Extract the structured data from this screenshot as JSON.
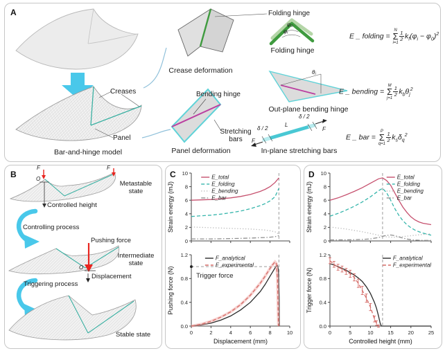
{
  "panels": {
    "a": "A",
    "b": "B",
    "c": "C",
    "d": "D"
  },
  "panel_a": {
    "labels": {
      "creases": "Creases",
      "panel": "Panel",
      "model_caption": "Bar-and-hinge model",
      "crease_deformation": "Crease deformation",
      "folding_hinge_callout": "Folding hinge",
      "folding_hinge_caption": "Folding hinge",
      "phi0": "φ₀",
      "phii": "φᵢ",
      "bending_hinge": "Bending hinge",
      "stretching_bars": "Stretching bars",
      "panel_deformation": "Panel deformation",
      "outplane_caption": "Out-plane bending hinge",
      "theta": "θⱼ",
      "inplane_caption": "In-plane stretching bars",
      "delta_left": "δ / 2",
      "delta_right": "δ / 2",
      "bar_length": "L",
      "force_left": "F",
      "force_right": "F"
    },
    "equations": {
      "folding": {
        "lhs": "E _ folding  = ",
        "sum_top": "N",
        "sum_bot": "i=1",
        "num": "1",
        "den": "2",
        "tokens": [
          [
            "k",
            ""
          ],
          [
            "f",
            "sub"
          ],
          [
            "(",
            ""
          ],
          [
            "φ",
            ""
          ],
          [
            "i",
            "sub"
          ],
          [
            " − ",
            ""
          ],
          [
            "φ",
            ""
          ],
          [
            "0",
            "sub"
          ],
          [
            ")",
            ""
          ],
          [
            "2",
            "sup"
          ]
        ]
      },
      "bending": {
        "lhs": "E _ bending  = ",
        "sum_top": "M",
        "sum_bot": "j=1",
        "num": "1",
        "den": "2",
        "tokens": [
          [
            "k",
            ""
          ],
          [
            "b",
            "sub"
          ],
          [
            "θ",
            ""
          ],
          [
            "j",
            "sub"
          ],
          [
            "2",
            "sup"
          ]
        ]
      },
      "bar": {
        "lhs": "E _ bar  = ",
        "sum_top": "P",
        "sum_bot": "q=1",
        "num": "1",
        "den": "2",
        "tokens": [
          [
            "k",
            ""
          ],
          [
            "s",
            "sub"
          ],
          [
            "δ",
            ""
          ],
          [
            "q",
            "sub"
          ],
          [
            "2",
            "sup"
          ]
        ]
      }
    }
  },
  "panel_b": {
    "labels": {
      "f1": "F",
      "f2": "F",
      "o1": "O",
      "o2": "O",
      "controlled_height": "Controlled height",
      "metastable": "Metastable state",
      "controlling": "Controlling process",
      "pushing": "Pushing force",
      "intermediate": "Intermediate state",
      "displacement": "Displacement",
      "triggering": "Triggering process",
      "stable": "Stable state"
    }
  },
  "colors": {
    "e_total": "#c6506e",
    "e_folding": "#35b5ab",
    "e_bending": "#b9b9b9",
    "e_bar": "#8f8f8f",
    "analytical": "#2b2b2b",
    "experimental": "#d56a66",
    "halo": "#f0a8a4",
    "guide": "#9c9c9c",
    "cyan_arrow": "#49c8ea",
    "red_arrow": "#e8251f",
    "green_hinge": "#3f9b3f",
    "light_green": "#b5d6a8",
    "magenta_hinge": "#bb3fa0",
    "cyan_edge": "#5fd3d8"
  },
  "chart_data": {
    "c_top": {
      "type": "line",
      "xlim": [
        0,
        10
      ],
      "ylim": [
        0,
        10
      ],
      "ylabel": "Strain energy (mJ)",
      "xticks": [
        0,
        2,
        4,
        6,
        8,
        10
      ],
      "yticks": [
        0,
        2,
        4,
        6,
        8,
        10
      ],
      "ytick_labels": [
        "0",
        "2",
        "4",
        "6",
        "8",
        "10"
      ],
      "vlines": [
        {
          "x": 8.9,
          "color": "#9c9c9c"
        }
      ],
      "legend": {
        "fx": 0.1,
        "fy": 0.01
      },
      "series": [
        {
          "name": "E_total",
          "color": "#c6506e",
          "dash": "solid",
          "x": [
            0,
            1,
            2,
            3,
            4,
            5,
            6,
            7,
            7.5,
            8,
            8.5,
            8.9
          ],
          "y": [
            6.0,
            6.05,
            6.1,
            6.2,
            6.35,
            6.55,
            6.85,
            7.3,
            7.6,
            8.0,
            8.6,
            9.3
          ]
        },
        {
          "name": "E_folding",
          "color": "#35b5ab",
          "dash": "dashed",
          "x": [
            0,
            1,
            2,
            3,
            4,
            5,
            6,
            7,
            7.5,
            8,
            8.5,
            8.9
          ],
          "y": [
            3.6,
            3.7,
            3.8,
            3.95,
            4.15,
            4.4,
            4.75,
            5.2,
            5.5,
            5.9,
            6.5,
            7.75
          ]
        },
        {
          "name": "E_bending",
          "color": "#b9b9b9",
          "dash": "dotted",
          "x": [
            0,
            1,
            2,
            3,
            4,
            5,
            6,
            7,
            7.5,
            8,
            8.5,
            8.9
          ],
          "y": [
            2.05,
            2.0,
            1.95,
            1.9,
            1.85,
            1.8,
            1.75,
            1.65,
            1.6,
            1.5,
            1.35,
            1.0
          ]
        },
        {
          "name": "E_bar",
          "color": "#8f8f8f",
          "dash": "dashdot",
          "x": [
            0,
            1,
            2,
            3,
            4,
            5,
            6,
            7,
            7.5,
            8,
            8.5,
            8.9
          ],
          "y": [
            0.3,
            0.3,
            0.3,
            0.32,
            0.35,
            0.38,
            0.42,
            0.48,
            0.5,
            0.55,
            0.62,
            0.8
          ]
        }
      ]
    },
    "c_bottom": {
      "type": "line",
      "xlim": [
        0,
        10
      ],
      "ylim": [
        0,
        1.2
      ],
      "xlabel": "Displacement (mm)",
      "ylabel": "Pushing force (N)",
      "xticks": [
        0,
        2,
        4,
        6,
        8,
        10
      ],
      "xtick_labels": [
        "0",
        "2",
        "4",
        "6",
        "8",
        "10"
      ],
      "yticks": [
        0,
        0.4,
        0.8,
        1.2
      ],
      "ytick_labels": [
        "0.0",
        "0.4",
        "0.8",
        "1.2"
      ],
      "vlines": [
        {
          "x": 8.9,
          "color": "#9c9c9c"
        }
      ],
      "hlines": [
        {
          "y": 1.0,
          "x0": 0,
          "x1": 8.9,
          "color": "#9c9c9c"
        }
      ],
      "points": [
        {
          "x": 0,
          "y": 1.0,
          "r": 2,
          "color": "#222"
        }
      ],
      "annotations": [
        {
          "text": "Trigger force",
          "fx": 0.05,
          "fy": 0.32
        }
      ],
      "legend": {
        "fx": 0.14,
        "fy": 0.0
      },
      "series": [
        {
          "name": "F_analytical",
          "color": "#2b2b2b",
          "dash": "solid",
          "x": [
            0,
            1,
            2,
            3,
            4,
            5,
            6,
            7,
            7.5,
            8,
            8.4,
            8.6,
            8.75,
            8.85,
            8.92,
            8.95
          ],
          "y": [
            0,
            0.02,
            0.05,
            0.1,
            0.17,
            0.27,
            0.4,
            0.58,
            0.7,
            0.84,
            0.95,
            1.0,
            1.02,
            0.95,
            0.5,
            0
          ]
        },
        {
          "name": "F_experimental",
          "color": "#d56a66",
          "dash": "dashed",
          "halo": "#f0a8a4",
          "x": [
            0,
            1,
            2,
            3,
            4,
            5,
            6,
            7,
            7.5,
            8,
            8.3,
            8.5,
            8.65,
            8.75,
            8.8,
            8.85
          ],
          "y": [
            0,
            0.03,
            0.08,
            0.15,
            0.24,
            0.36,
            0.52,
            0.72,
            0.84,
            0.97,
            1.04,
            1.08,
            1.05,
            0.8,
            0.4,
            0
          ]
        }
      ]
    },
    "d_top": {
      "type": "line",
      "xlim": [
        0,
        25
      ],
      "ylim": [
        0,
        10
      ],
      "ylabel": "Strain energy (mJ)",
      "xticks": [
        0,
        5,
        10,
        15,
        20,
        25
      ],
      "yticks": [
        0,
        2,
        4,
        6,
        8,
        10
      ],
      "ytick_labels": [
        "0",
        "2",
        "4",
        "6",
        "8",
        "10"
      ],
      "vlines": [
        {
          "x": 13,
          "color": "#9c9c9c"
        }
      ],
      "legend": {
        "fx": 0.56,
        "fy": 0.01
      },
      "series": [
        {
          "name": "E_total",
          "color": "#c6506e",
          "dash": "solid",
          "x": [
            0,
            2,
            4,
            6,
            8,
            10,
            12,
            13,
            14,
            15,
            16,
            17,
            18,
            19,
            20,
            21,
            22,
            23,
            24,
            25
          ],
          "y": [
            6.0,
            6.35,
            6.8,
            7.3,
            7.85,
            8.5,
            9.15,
            9.3,
            8.9,
            8.2,
            7.1,
            6.0,
            5.0,
            4.2,
            3.55,
            3.1,
            2.8,
            2.6,
            2.5,
            2.4
          ]
        },
        {
          "name": "E_folding",
          "color": "#35b5ab",
          "dash": "dashed",
          "x": [
            0,
            2,
            4,
            6,
            8,
            10,
            12,
            13,
            14,
            15,
            16,
            17,
            18,
            19,
            20,
            21,
            22,
            23,
            24,
            25
          ],
          "y": [
            3.65,
            4.05,
            4.55,
            5.1,
            5.75,
            6.5,
            7.4,
            7.75,
            7.1,
            6.0,
            4.8,
            3.8,
            3.0,
            2.4,
            1.95,
            1.6,
            1.35,
            1.15,
            1.0,
            0.85
          ]
        },
        {
          "name": "E_bending",
          "color": "#b9b9b9",
          "dash": "dotted",
          "x": [
            0,
            2,
            4,
            6,
            8,
            10,
            12,
            13,
            14,
            15,
            16,
            17,
            18,
            19,
            20,
            21,
            22,
            23,
            24,
            25
          ],
          "y": [
            2.05,
            1.9,
            1.75,
            1.55,
            1.35,
            1.1,
            0.85,
            0.72,
            0.6,
            0.55,
            0.55,
            0.58,
            0.63,
            0.7,
            0.77,
            0.84,
            0.9,
            0.96,
            1.0,
            1.05
          ]
        },
        {
          "name": "E_bar",
          "color": "#8f8f8f",
          "dash": "dashdot",
          "x": [
            0,
            2,
            4,
            6,
            8,
            10,
            12,
            13,
            14,
            15,
            16,
            17,
            18,
            19,
            20,
            21,
            22,
            23,
            24,
            25
          ],
          "y": [
            0.15,
            0.15,
            0.16,
            0.18,
            0.22,
            0.3,
            0.5,
            0.68,
            0.82,
            0.88,
            0.78,
            0.6,
            0.42,
            0.28,
            0.18,
            0.12,
            0.1,
            0.08,
            0.07,
            0.07
          ]
        }
      ]
    },
    "d_bottom": {
      "type": "line",
      "xlim": [
        0,
        25
      ],
      "ylim": [
        0,
        1.2
      ],
      "xlabel": "Controlled height (mm)",
      "ylabel": "Trigger force (N)",
      "xticks": [
        0,
        5,
        10,
        15,
        20,
        25
      ],
      "xtick_labels": [
        "0",
        "5",
        "10",
        "15",
        "20",
        "25"
      ],
      "yticks": [
        0,
        0.4,
        0.8,
        1.2
      ],
      "ytick_labels": [
        "0.0",
        "0.4",
        "0.8",
        "1.2"
      ],
      "vlines": [
        {
          "x": 13,
          "color": "#9c9c9c"
        }
      ],
      "legend": {
        "fx": 0.52,
        "fy": 0.0
      },
      "series": [
        {
          "name": "F_analytical",
          "color": "#2b2b2b",
          "dash": "solid",
          "x": [
            0,
            1,
            2,
            3,
            4,
            5,
            6,
            7,
            8,
            9,
            10,
            11,
            11.5,
            12,
            12.4,
            12.7,
            13,
            15,
            20,
            25
          ],
          "y": [
            1.05,
            1.03,
            1.0,
            0.97,
            0.94,
            0.9,
            0.86,
            0.81,
            0.75,
            0.66,
            0.55,
            0.4,
            0.3,
            0.17,
            0.05,
            0.0,
            0,
            0,
            0,
            0
          ]
        },
        {
          "name": "F_experimental",
          "color": "#d56a66",
          "dash": "dashed",
          "x": [
            0,
            1,
            2,
            3,
            4,
            5,
            6,
            7,
            8,
            9,
            10,
            11,
            11.5,
            12
          ],
          "y": [
            1.1,
            1.04,
            0.99,
            0.96,
            0.92,
            0.88,
            0.82,
            0.72,
            0.6,
            0.47,
            0.32,
            0.12,
            0.05,
            0.0
          ],
          "error": [
            0.05,
            0.05,
            0.05,
            0.05,
            0.05,
            0.06,
            0.06,
            0.07,
            0.07,
            0.07,
            0.06,
            0.05,
            0.04,
            0.02
          ]
        }
      ]
    }
  }
}
